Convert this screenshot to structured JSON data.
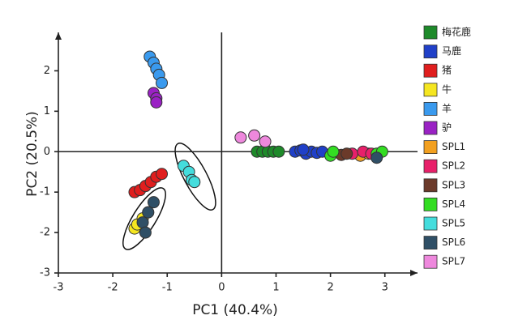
{
  "chart_data": {
    "type": "scatter",
    "x_label": "PC1 (40.4%)",
    "y_label": "PC2 (20.5%)",
    "xlim": [
      -3,
      3.6
    ],
    "ylim": [
      -3,
      2.95
    ],
    "xticks": [
      -3,
      -2,
      -1,
      0,
      1,
      2,
      3
    ],
    "yticks": [
      -3,
      -2,
      -1,
      0,
      1,
      2
    ],
    "legend": "right",
    "series": [
      {
        "name": "梅花鹿",
        "color": "#1e8a2a",
        "x": [
          0.65,
          0.75,
          0.85,
          0.95,
          1.05
        ],
        "y": [
          0,
          0,
          0,
          0,
          0
        ]
      },
      {
        "name": "马鹿",
        "color": "#2040c8",
        "x": [
          1.35,
          1.45,
          1.55,
          1.65,
          1.75,
          1.85,
          1.5
        ],
        "y": [
          0,
          0.03,
          -0.05,
          0,
          -0.03,
          0,
          0.05
        ]
      },
      {
        "name": "猪",
        "color": "#e01e1e",
        "x": [
          -1.6,
          -1.5,
          -1.4,
          -1.3,
          -1.2,
          -1.1
        ],
        "y": [
          -1.0,
          -0.95,
          -0.85,
          -0.75,
          -0.62,
          -0.55
        ]
      },
      {
        "name": "牛",
        "color": "#f5e620",
        "x": [
          -1.6,
          -1.55,
          -1.45,
          -1.35
        ],
        "y": [
          -1.9,
          -1.8,
          -1.65,
          -1.5
        ]
      },
      {
        "name": "羊",
        "color": "#3a9aee",
        "x": [
          -1.32,
          -1.25,
          -1.2,
          -1.15,
          -1.1
        ],
        "y": [
          2.35,
          2.2,
          2.05,
          1.9,
          1.7
        ]
      },
      {
        "name": "驴",
        "color": "#9a22c4",
        "x": [
          -1.25,
          -1.2,
          -1.2
        ],
        "y": [
          1.45,
          1.32,
          1.22
        ]
      },
      {
        "name": "SPL1",
        "color": "#f2a020",
        "x": [
          2.55,
          2.7
        ],
        "y": [
          -0.1,
          -0.05
        ]
      },
      {
        "name": "SPL2",
        "color": "#e8206a",
        "x": [
          2.4,
          2.6,
          2.75
        ],
        "y": [
          -0.05,
          0,
          -0.05
        ]
      },
      {
        "name": "SPL3",
        "color": "#6b3a2a",
        "x": [
          2.2,
          2.3
        ],
        "y": [
          -0.08,
          -0.05
        ]
      },
      {
        "name": "SPL4",
        "color": "#33dd22",
        "x": [
          2.0,
          2.05,
          2.85,
          2.95
        ],
        "y": [
          -0.1,
          0,
          -0.05,
          0
        ]
      },
      {
        "name": "SPL5",
        "color": "#44dddd",
        "x": [
          -0.7,
          -0.6,
          -0.55,
          -0.5
        ],
        "y": [
          -0.35,
          -0.5,
          -0.7,
          -0.75
        ]
      },
      {
        "name": "SPL6",
        "color": "#2f4f66",
        "x": [
          -1.25,
          -1.35,
          -1.45,
          -1.4,
          2.85
        ],
        "y": [
          -1.25,
          -1.5,
          -1.75,
          -2.0,
          -0.15
        ]
      },
      {
        "name": "SPL7",
        "color": "#ee88dd",
        "x": [
          0.35,
          0.6,
          0.8
        ],
        "y": [
          0.35,
          0.4,
          0.25
        ]
      }
    ]
  }
}
